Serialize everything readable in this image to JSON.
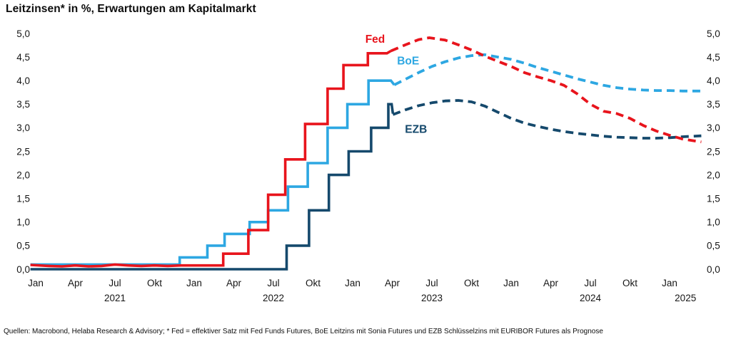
{
  "title": "Leitzinsen* in %, Erwartungen am Kapitalmarkt",
  "footer": "Quellen: Macrobond, Helaba Research & Advisory; * Fed = effektiver Satz mit Fed Funds Futures, BoE Leitzins mit Sonia Futures und EZB Schlüsselzins mit EURIBOR Futures als Prognose",
  "chart_data": {
    "type": "line",
    "title": "Leitzinsen* in %, Erwartungen am Kapitalmarkt",
    "x_unit": "months since Jan 2021 (0 = Jan 2021, 12 = Jan 2022, 48 = Jan 2025)",
    "ylim": [
      0.0,
      5.0
    ],
    "xlim": [
      -0.4,
      50.5
    ],
    "grid": false,
    "legend": "inline series labels",
    "y_ticks": [
      {
        "label": "5,0",
        "value": 5.0
      },
      {
        "label": "4,5",
        "value": 4.5
      },
      {
        "label": "4,0",
        "value": 4.0
      },
      {
        "label": "3,5",
        "value": 3.5
      },
      {
        "label": "3,0",
        "value": 3.0
      },
      {
        "label": "2,5",
        "value": 2.5
      },
      {
        "label": "2,0",
        "value": 2.0
      },
      {
        "label": "1,5",
        "value": 1.5
      },
      {
        "label": "1,0",
        "value": 1.0
      },
      {
        "label": "0,5",
        "value": 0.5
      },
      {
        "label": "0,0",
        "value": 0.0
      }
    ],
    "x_ticks": [
      {
        "label": "Jan",
        "m": 0
      },
      {
        "label": "Apr",
        "m": 3
      },
      {
        "label": "Jul",
        "m": 6
      },
      {
        "label": "Okt",
        "m": 9
      },
      {
        "label": "Jan",
        "m": 12
      },
      {
        "label": "Apr",
        "m": 15
      },
      {
        "label": "Jul",
        "m": 18
      },
      {
        "label": "Okt",
        "m": 21
      },
      {
        "label": "Jan",
        "m": 24
      },
      {
        "label": "Apr",
        "m": 27
      },
      {
        "label": "Jul",
        "m": 30
      },
      {
        "label": "Okt",
        "m": 33
      },
      {
        "label": "Jan",
        "m": 36
      },
      {
        "label": "Apr",
        "m": 39
      },
      {
        "label": "Jul",
        "m": 42
      },
      {
        "label": "Okt",
        "m": 45
      },
      {
        "label": "Jan",
        "m": 48
      }
    ],
    "year_labels": [
      {
        "label": "2021",
        "m": 6
      },
      {
        "label": "2022",
        "m": 18
      },
      {
        "label": "2023",
        "m": 30
      },
      {
        "label": "2024",
        "m": 42
      },
      {
        "label": "2025",
        "m": 49.2
      }
    ],
    "series": [
      {
        "name": "EZB",
        "id": "ezb",
        "color": "#15496c",
        "label": {
          "text": "EZB",
          "m": 28.8,
          "v": 2.97
        },
        "solid": [
          [
            -0.4,
            0.0
          ],
          [
            19.0,
            0.0
          ],
          [
            19.0,
            0.5
          ],
          [
            20.7,
            0.5
          ],
          [
            20.7,
            1.25
          ],
          [
            22.2,
            1.25
          ],
          [
            22.2,
            2.0
          ],
          [
            23.7,
            2.0
          ],
          [
            23.7,
            2.5
          ],
          [
            25.4,
            2.5
          ],
          [
            25.4,
            3.0
          ],
          [
            26.7,
            3.0
          ],
          [
            26.7,
            3.5
          ],
          [
            26.95,
            3.5
          ],
          [
            27.05,
            3.3
          ]
        ],
        "dashed": [
          [
            27.05,
            3.28
          ],
          [
            28,
            3.38
          ],
          [
            29,
            3.47
          ],
          [
            30,
            3.53
          ],
          [
            31,
            3.57
          ],
          [
            32,
            3.58
          ],
          [
            33,
            3.55
          ],
          [
            34,
            3.46
          ],
          [
            35,
            3.33
          ],
          [
            36,
            3.2
          ],
          [
            37,
            3.1
          ],
          [
            38,
            3.03
          ],
          [
            39,
            2.97
          ],
          [
            40,
            2.92
          ],
          [
            41,
            2.88
          ],
          [
            42,
            2.85
          ],
          [
            43,
            2.82
          ],
          [
            44,
            2.8
          ],
          [
            45,
            2.79
          ],
          [
            46,
            2.78
          ],
          [
            47,
            2.78
          ],
          [
            48,
            2.79
          ],
          [
            49,
            2.81
          ],
          [
            50.4,
            2.83
          ]
        ]
      },
      {
        "name": "BoE",
        "id": "boe",
        "color": "#2da7e2",
        "label": {
          "text": "BoE",
          "m": 28.2,
          "v": 4.42
        },
        "solid": [
          [
            -0.4,
            0.1
          ],
          [
            10.9,
            0.1
          ],
          [
            10.9,
            0.25
          ],
          [
            13.0,
            0.25
          ],
          [
            13.0,
            0.5
          ],
          [
            14.3,
            0.5
          ],
          [
            14.3,
            0.75
          ],
          [
            16.2,
            0.75
          ],
          [
            16.2,
            1.0
          ],
          [
            17.6,
            1.0
          ],
          [
            17.6,
            1.25
          ],
          [
            19.1,
            1.25
          ],
          [
            19.1,
            1.75
          ],
          [
            20.6,
            1.75
          ],
          [
            20.6,
            2.25
          ],
          [
            22.1,
            2.25
          ],
          [
            22.1,
            3.0
          ],
          [
            23.6,
            3.0
          ],
          [
            23.6,
            3.5
          ],
          [
            25.2,
            3.5
          ],
          [
            25.2,
            4.0
          ],
          [
            26.9,
            4.0
          ],
          [
            27.15,
            3.91
          ]
        ],
        "dashed": [
          [
            27.15,
            3.91
          ],
          [
            28,
            4.03
          ],
          [
            29,
            4.17
          ],
          [
            30,
            4.3
          ],
          [
            31,
            4.4
          ],
          [
            32,
            4.48
          ],
          [
            33,
            4.53
          ],
          [
            34,
            4.55
          ],
          [
            35,
            4.5
          ],
          [
            36,
            4.45
          ],
          [
            37,
            4.37
          ],
          [
            38,
            4.28
          ],
          [
            39,
            4.2
          ],
          [
            40,
            4.12
          ],
          [
            41,
            4.04
          ],
          [
            42,
            3.97
          ],
          [
            43,
            3.9
          ],
          [
            44,
            3.85
          ],
          [
            45,
            3.82
          ],
          [
            46,
            3.8
          ],
          [
            47,
            3.79
          ],
          [
            48,
            3.79
          ],
          [
            49,
            3.78
          ],
          [
            50.5,
            3.78
          ]
        ]
      },
      {
        "name": "Fed",
        "id": "fed",
        "color": "#e8141c",
        "label": {
          "text": "Fed",
          "m": 25.7,
          "v": 4.88
        },
        "solid": [
          [
            -0.4,
            0.09
          ],
          [
            1,
            0.07
          ],
          [
            2,
            0.06
          ],
          [
            3,
            0.08
          ],
          [
            4,
            0.06
          ],
          [
            5,
            0.07
          ],
          [
            6,
            0.1
          ],
          [
            7,
            0.08
          ],
          [
            8,
            0.07
          ],
          [
            9,
            0.08
          ],
          [
            10,
            0.07
          ],
          [
            11,
            0.08
          ],
          [
            12,
            0.08
          ],
          [
            13,
            0.08
          ],
          [
            14.2,
            0.08
          ],
          [
            14.2,
            0.33
          ],
          [
            16.1,
            0.33
          ],
          [
            16.1,
            0.83
          ],
          [
            17.6,
            0.83
          ],
          [
            17.6,
            1.58
          ],
          [
            18.9,
            1.58
          ],
          [
            18.9,
            2.33
          ],
          [
            20.4,
            2.33
          ],
          [
            20.4,
            3.08
          ],
          [
            22.1,
            3.08
          ],
          [
            22.1,
            3.83
          ],
          [
            23.3,
            3.83
          ],
          [
            23.3,
            4.33
          ],
          [
            25.15,
            4.33
          ],
          [
            25.15,
            4.58
          ],
          [
            26.6,
            4.58
          ],
          [
            26.9,
            4.63
          ]
        ],
        "dashed": [
          [
            26.9,
            4.63
          ],
          [
            28,
            4.76
          ],
          [
            29,
            4.87
          ],
          [
            29.8,
            4.91
          ],
          [
            31,
            4.86
          ],
          [
            32,
            4.76
          ],
          [
            33,
            4.65
          ],
          [
            34,
            4.52
          ],
          [
            35,
            4.41
          ],
          [
            36,
            4.3
          ],
          [
            37,
            4.17
          ],
          [
            38,
            4.08
          ],
          [
            39,
            4.0
          ],
          [
            40,
            3.9
          ],
          [
            41,
            3.72
          ],
          [
            42,
            3.5
          ],
          [
            43,
            3.35
          ],
          [
            44,
            3.3
          ],
          [
            45,
            3.2
          ],
          [
            46,
            3.05
          ],
          [
            47,
            2.93
          ],
          [
            48,
            2.84
          ],
          [
            49,
            2.76
          ],
          [
            50.4,
            2.7
          ]
        ]
      }
    ]
  }
}
